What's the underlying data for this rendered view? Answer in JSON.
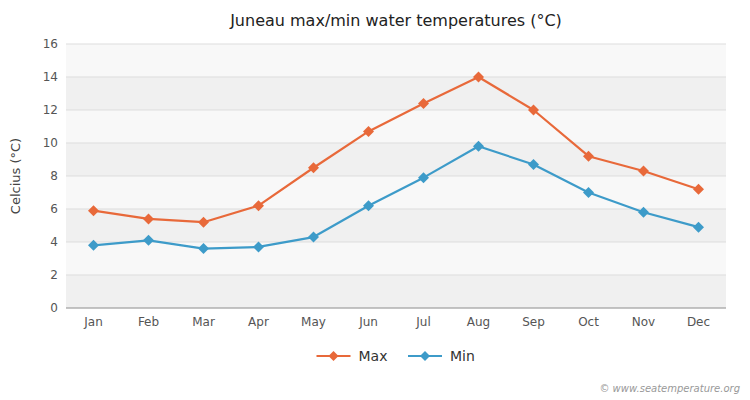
{
  "chart_data": {
    "type": "line",
    "title": "Juneau max/min water temperatures (°C)",
    "y_label": "Celcius (°C)",
    "categories": [
      "Jan",
      "Feb",
      "Mar",
      "Apr",
      "May",
      "Jun",
      "Jul",
      "Aug",
      "Sep",
      "Oct",
      "Nov",
      "Dec"
    ],
    "series": [
      {
        "name": "Max",
        "color": "#e8693a",
        "marker": "diamond",
        "values": [
          5.9,
          5.4,
          5.2,
          6.2,
          8.5,
          10.7,
          12.4,
          14.0,
          12.0,
          9.2,
          8.3,
          7.2
        ]
      },
      {
        "name": "Min",
        "color": "#3d9bc9",
        "marker": "diamond",
        "values": [
          3.8,
          4.1,
          3.6,
          3.7,
          4.3,
          6.2,
          7.9,
          9.8,
          8.7,
          7.0,
          5.8,
          4.9
        ]
      }
    ],
    "ylim": [
      0,
      16
    ],
    "yticks": [
      0,
      2,
      4,
      6,
      8,
      10,
      12,
      14,
      16
    ],
    "grid": true,
    "legend": "bottom",
    "annotations": [
      "© www.seatemperature.org"
    ]
  }
}
